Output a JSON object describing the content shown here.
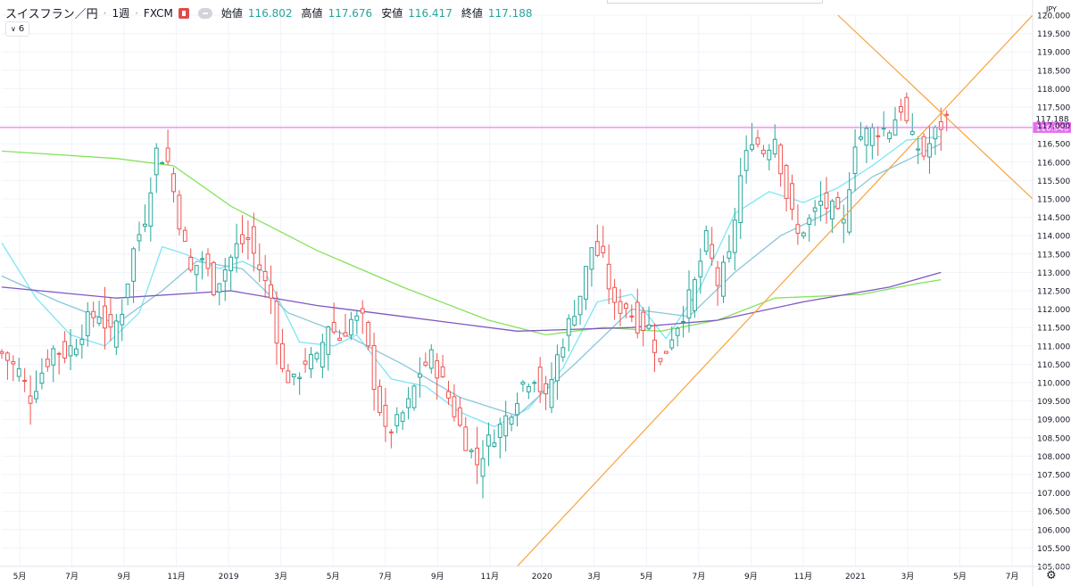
{
  "header": {
    "symbol": "スイスフラン／円",
    "separator": "·",
    "interval": "1週",
    "exchange": "FXCM",
    "open_label": "始値",
    "open_value": "116.802",
    "high_label": "高値",
    "high_value": "117.676",
    "low_label": "安値",
    "low_value": "116.417",
    "close_label": "終値",
    "close_value": "117.188",
    "indicator_count": "6"
  },
  "colors": {
    "up": "#26a69a",
    "down": "#ef5350",
    "ma_fast": "#7de5f5",
    "ma_mid": "#8ac7d8",
    "ma_long": "#86e35a",
    "ma_xlong": "#7e57c2",
    "trendline": "#f7a33a",
    "hline": "#e56ff0",
    "grid": "#f0f3fa"
  },
  "chart_data": {
    "type": "candlestick",
    "currency": "JPY",
    "ylim": [
      105.0,
      120.0
    ],
    "y_ticks": [
      "105.000",
      "105.500",
      "106.000",
      "106.500",
      "107.000",
      "107.500",
      "108.000",
      "108.500",
      "109.000",
      "109.500",
      "110.000",
      "110.500",
      "111.000",
      "111.500",
      "112.000",
      "112.500",
      "113.000",
      "113.500",
      "114.000",
      "114.500",
      "115.000",
      "115.500",
      "116.000",
      "116.500",
      "117.000",
      "117.500",
      "118.000",
      "118.500",
      "119.000",
      "119.500",
      "120.000"
    ],
    "x_ticks": [
      "5月",
      "7月",
      "9月",
      "11月",
      "2019",
      "3月",
      "5月",
      "7月",
      "9月",
      "11月",
      "2020",
      "3月",
      "5月",
      "7月",
      "9月",
      "11月",
      "2021",
      "3月",
      "5月",
      "7月"
    ],
    "last_price": "117.188",
    "horizontal_line": "116.943",
    "close_path": [
      [
        0,
        110.8
      ],
      [
        3,
        110.3
      ],
      [
        5,
        109.6
      ],
      [
        7,
        110.3
      ],
      [
        9,
        110.9
      ],
      [
        11,
        110.8
      ],
      [
        13,
        111.1
      ],
      [
        15,
        111.7
      ],
      [
        17,
        111.9
      ],
      [
        19,
        111.3
      ],
      [
        21,
        112.0
      ],
      [
        23,
        113.6
      ],
      [
        25,
        114.5
      ],
      [
        27,
        116.3
      ],
      [
        29,
        116.0
      ],
      [
        31,
        114.4
      ],
      [
        33,
        113.0
      ],
      [
        35,
        113.4
      ],
      [
        37,
        112.6
      ],
      [
        39,
        113.1
      ],
      [
        41,
        113.7
      ],
      [
        43,
        113.9
      ],
      [
        45,
        113.1
      ],
      [
        47,
        112.3
      ],
      [
        49,
        110.3
      ],
      [
        51,
        110.0
      ],
      [
        53,
        110.6
      ],
      [
        55,
        110.6
      ],
      [
        57,
        111.6
      ],
      [
        59,
        111.2
      ],
      [
        61,
        111.7
      ],
      [
        63,
        111.7
      ],
      [
        65,
        110.0
      ],
      [
        67,
        108.6
      ],
      [
        69,
        108.9
      ],
      [
        71,
        109.4
      ],
      [
        73,
        110.3
      ],
      [
        75,
        110.7
      ],
      [
        77,
        110.0
      ],
      [
        79,
        109.2
      ],
      [
        81,
        108.4
      ],
      [
        83,
        107.8
      ],
      [
        85,
        108.4
      ],
      [
        87,
        108.8
      ],
      [
        89,
        109.3
      ],
      [
        91,
        110.0
      ],
      [
        93,
        110.2
      ],
      [
        95,
        109.5
      ],
      [
        97,
        110.7
      ],
      [
        99,
        111.6
      ],
      [
        101,
        112.4
      ],
      [
        103,
        113.7
      ],
      [
        105,
        113.3
      ],
      [
        107,
        112.0
      ],
      [
        109,
        112.1
      ],
      [
        111,
        111.6
      ],
      [
        113,
        111.5
      ],
      [
        115,
        110.5
      ],
      [
        117,
        111.3
      ],
      [
        119,
        111.9
      ],
      [
        121,
        112.7
      ],
      [
        123,
        113.9
      ],
      [
        125,
        112.7
      ],
      [
        127,
        113.4
      ],
      [
        129,
        115.6
      ],
      [
        131,
        116.7
      ],
      [
        133,
        116.3
      ],
      [
        135,
        116.7
      ],
      [
        137,
        115.1
      ],
      [
        139,
        114.0
      ],
      [
        141,
        114.4
      ],
      [
        143,
        114.9
      ],
      [
        145,
        114.7
      ],
      [
        147,
        114.3
      ],
      [
        149,
        116.6
      ],
      [
        151,
        116.8
      ],
      [
        153,
        116.9
      ],
      [
        155,
        116.9
      ],
      [
        157,
        117.5
      ],
      [
        159,
        116.6
      ],
      [
        161,
        116.2
      ],
      [
        163,
        116.8
      ],
      [
        165,
        117.2
      ]
    ],
    "series": [
      {
        "name": "",
        "kind": "ma",
        "points": [
          [
            0,
            113.8
          ],
          [
            6,
            112.3
          ],
          [
            12,
            111.3
          ],
          [
            18,
            111.0
          ],
          [
            24,
            111.9
          ],
          [
            28,
            113.7
          ],
          [
            32,
            113.5
          ],
          [
            38,
            113.1
          ],
          [
            42,
            113.3
          ],
          [
            46,
            113.0
          ],
          [
            52,
            111.1
          ],
          [
            58,
            111.0
          ],
          [
            62,
            111.3
          ],
          [
            68,
            110.1
          ],
          [
            74,
            109.9
          ],
          [
            80,
            109.2
          ],
          [
            86,
            108.8
          ],
          [
            92,
            109.3
          ],
          [
            98,
            110.4
          ],
          [
            104,
            112.2
          ],
          [
            110,
            112.4
          ],
          [
            116,
            111.2
          ],
          [
            122,
            112.6
          ],
          [
            128,
            114.6
          ],
          [
            134,
            115.2
          ],
          [
            140,
            114.9
          ],
          [
            146,
            115.3
          ],
          [
            152,
            115.9
          ],
          [
            158,
            116.6
          ],
          [
            164,
            116.7
          ]
        ]
      },
      {
        "name": "",
        "kind": "ma",
        "points": [
          [
            0,
            112.9
          ],
          [
            10,
            112.2
          ],
          [
            20,
            111.6
          ],
          [
            28,
            112.5
          ],
          [
            34,
            113.3
          ],
          [
            42,
            113.1
          ],
          [
            50,
            111.9
          ],
          [
            60,
            111.3
          ],
          [
            70,
            110.5
          ],
          [
            80,
            109.6
          ],
          [
            90,
            109.1
          ],
          [
            100,
            110.5
          ],
          [
            110,
            112.0
          ],
          [
            120,
            111.8
          ],
          [
            128,
            113.0
          ],
          [
            136,
            114.0
          ],
          [
            144,
            114.6
          ],
          [
            152,
            115.6
          ],
          [
            160,
            116.2
          ],
          [
            164,
            116.5
          ]
        ]
      },
      {
        "name": "",
        "kind": "ma",
        "points": [
          [
            0,
            116.3
          ],
          [
            20,
            116.1
          ],
          [
            30,
            115.9
          ],
          [
            40,
            114.8
          ],
          [
            55,
            113.6
          ],
          [
            70,
            112.6
          ],
          [
            85,
            111.7
          ],
          [
            95,
            111.3
          ],
          [
            105,
            111.5
          ],
          [
            115,
            111.4
          ],
          [
            125,
            111.7
          ],
          [
            135,
            112.3
          ],
          [
            150,
            112.4
          ],
          [
            160,
            112.7
          ],
          [
            164,
            112.8
          ]
        ]
      },
      {
        "name": "",
        "kind": "ma",
        "points": [
          [
            0,
            112.6
          ],
          [
            20,
            112.3
          ],
          [
            40,
            112.5
          ],
          [
            55,
            112.1
          ],
          [
            70,
            111.8
          ],
          [
            90,
            111.4
          ],
          [
            110,
            111.5
          ],
          [
            125,
            111.7
          ],
          [
            140,
            112.2
          ],
          [
            155,
            112.6
          ],
          [
            164,
            113.0
          ]
        ]
      }
    ],
    "trendlines": [
      {
        "from": [
          90,
          105.0
        ],
        "to": [
          180,
          120.0
        ]
      },
      {
        "from": [
          146,
          120.0
        ],
        "to": [
          180,
          115.0
        ]
      }
    ]
  }
}
